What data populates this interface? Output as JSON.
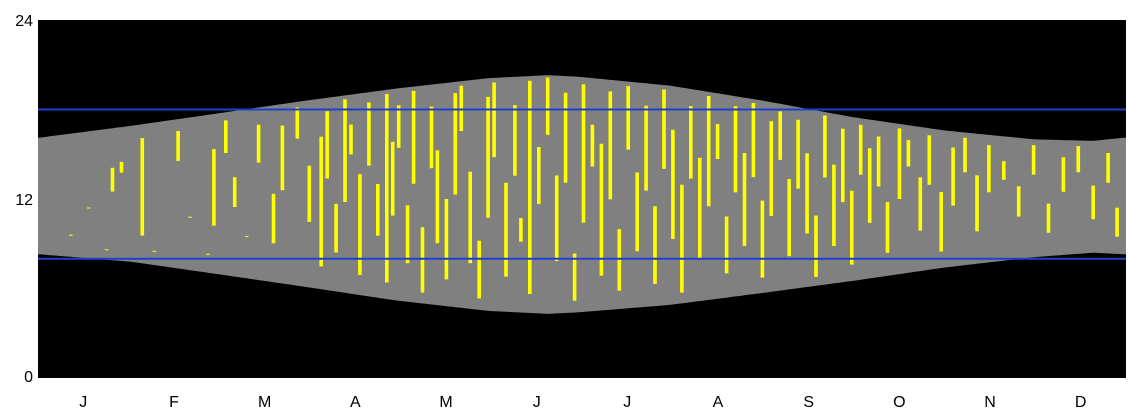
{
  "chart_data": {
    "type": "area",
    "title": "",
    "xlabel": "",
    "ylabel": "",
    "ylim": [
      0,
      24
    ],
    "y_ticks": [
      0,
      12,
      24
    ],
    "months": [
      "J",
      "F",
      "M",
      "A",
      "M",
      "J",
      "J",
      "A",
      "S",
      "O",
      "N",
      "D"
    ],
    "days_in_year": 365,
    "daylight_series": {
      "name": "",
      "day_of_year": [
        1,
        32,
        60,
        91,
        121,
        152,
        172,
        182,
        213,
        244,
        274,
        305,
        335,
        355,
        365
      ],
      "sunrise_hour": [
        8.3,
        7.8,
        7.0,
        6.1,
        5.2,
        4.5,
        4.3,
        4.4,
        4.9,
        5.7,
        6.5,
        7.4,
        8.1,
        8.4,
        8.3
      ],
      "sunset_hour": [
        16.1,
        16.9,
        17.7,
        18.6,
        19.4,
        20.1,
        20.3,
        20.2,
        19.6,
        18.6,
        17.5,
        16.6,
        16.0,
        15.9,
        16.1
      ]
    },
    "reference_lines": [
      {
        "hour": 18,
        "color": "#1f3fd0"
      },
      {
        "hour": 8,
        "color": "#1f3fd0"
      }
    ],
    "sunshine_bars": {
      "color": "#ffff00",
      "bars": [
        [
          12,
          0.62,
          0.18
        ],
        [
          18,
          0.7,
          0.4
        ],
        [
          24,
          0.58,
          0.08
        ],
        [
          26,
          0.52,
          0.7
        ],
        [
          29,
          0.66,
          0.74
        ],
        [
          36,
          0.2,
          0.9
        ],
        [
          40,
          0.48,
          0.1
        ],
        [
          48,
          0.72,
          0.92
        ],
        [
          52,
          0.55,
          0.35
        ],
        [
          58,
          0.63,
          0.12
        ],
        [
          60,
          0.3,
          0.78
        ],
        [
          64,
          0.75,
          0.95
        ],
        [
          67,
          0.42,
          0.6
        ],
        [
          71,
          0.58,
          0.25
        ],
        [
          75,
          0.68,
          0.9
        ],
        [
          80,
          0.22,
          0.5
        ],
        [
          83,
          0.52,
          0.88
        ],
        [
          88,
          0.8,
          0.97
        ],
        [
          92,
          0.35,
          0.65
        ],
        [
          96,
          0.12,
          0.8
        ],
        [
          98,
          0.58,
          0.93
        ],
        [
          101,
          0.2,
          0.45
        ],
        [
          104,
          0.46,
          0.98
        ],
        [
          106,
          0.7,
          0.85
        ],
        [
          109,
          0.1,
          0.6
        ],
        [
          112,
          0.64,
          0.95
        ],
        [
          115,
          0.3,
          0.55
        ],
        [
          118,
          0.08,
          0.98
        ],
        [
          120,
          0.4,
          0.75
        ],
        [
          122,
          0.72,
          0.92
        ],
        [
          125,
          0.18,
          0.45
        ],
        [
          127,
          0.55,
          0.98
        ],
        [
          130,
          0.05,
          0.35
        ],
        [
          133,
          0.62,
          0.9
        ],
        [
          135,
          0.28,
          0.7
        ],
        [
          138,
          0.12,
          0.48
        ],
        [
          141,
          0.5,
          0.95
        ],
        [
          143,
          0.78,
          0.98
        ],
        [
          146,
          0.2,
          0.6
        ],
        [
          149,
          0.05,
          0.3
        ],
        [
          152,
          0.4,
          0.92
        ],
        [
          154,
          0.66,
          0.98
        ],
        [
          158,
          0.15,
          0.55
        ],
        [
          161,
          0.58,
          0.88
        ],
        [
          163,
          0.3,
          0.4
        ],
        [
          166,
          0.08,
          0.98
        ],
        [
          169,
          0.46,
          0.7
        ],
        [
          172,
          0.75,
          0.99
        ],
        [
          175,
          0.22,
          0.58
        ],
        [
          178,
          0.55,
          0.93
        ],
        [
          181,
          0.05,
          0.25
        ],
        [
          184,
          0.38,
          0.97
        ],
        [
          187,
          0.62,
          0.8
        ],
        [
          190,
          0.15,
          0.72
        ],
        [
          193,
          0.48,
          0.95
        ],
        [
          196,
          0.08,
          0.35
        ],
        [
          199,
          0.7,
          0.98
        ],
        [
          202,
          0.25,
          0.6
        ],
        [
          205,
          0.52,
          0.9
        ],
        [
          208,
          0.1,
          0.45
        ],
        [
          211,
          0.62,
          0.98
        ],
        [
          214,
          0.3,
          0.8
        ],
        [
          217,
          0.05,
          0.55
        ],
        [
          220,
          0.58,
          0.92
        ],
        [
          223,
          0.2,
          0.68
        ],
        [
          226,
          0.45,
          0.98
        ],
        [
          229,
          0.68,
          0.85
        ],
        [
          232,
          0.12,
          0.4
        ],
        [
          235,
          0.52,
          0.95
        ],
        [
          238,
          0.25,
          0.72
        ],
        [
          241,
          0.6,
          0.98
        ],
        [
          244,
          0.08,
          0.48
        ],
        [
          247,
          0.4,
          0.9
        ],
        [
          250,
          0.7,
          0.96
        ],
        [
          253,
          0.18,
          0.6
        ],
        [
          256,
          0.55,
          0.93
        ],
        [
          259,
          0.3,
          0.75
        ],
        [
          262,
          0.05,
          0.4
        ],
        [
          265,
          0.62,
          0.98
        ],
        [
          268,
          0.22,
          0.7
        ],
        [
          271,
          0.48,
          0.92
        ],
        [
          274,
          0.1,
          0.55
        ],
        [
          277,
          0.65,
          0.96
        ],
        [
          280,
          0.35,
          0.82
        ],
        [
          283,
          0.58,
          0.9
        ],
        [
          286,
          0.15,
          0.48
        ],
        [
          290,
          0.5,
          0.97
        ],
        [
          293,
          0.72,
          0.9
        ],
        [
          297,
          0.28,
          0.65
        ],
        [
          300,
          0.6,
          0.95
        ],
        [
          304,
          0.12,
          0.55
        ],
        [
          308,
          0.45,
          0.88
        ],
        [
          312,
          0.7,
          0.96
        ],
        [
          316,
          0.25,
          0.68
        ],
        [
          320,
          0.55,
          0.92
        ],
        [
          325,
          0.65,
          0.8
        ],
        [
          330,
          0.35,
          0.6
        ],
        [
          335,
          0.7,
          0.95
        ],
        [
          340,
          0.2,
          0.45
        ],
        [
          345,
          0.55,
          0.85
        ],
        [
          350,
          0.72,
          0.95
        ],
        [
          355,
          0.3,
          0.6
        ],
        [
          360,
          0.62,
          0.88
        ],
        [
          363,
          0.15,
          0.4
        ]
      ]
    }
  }
}
